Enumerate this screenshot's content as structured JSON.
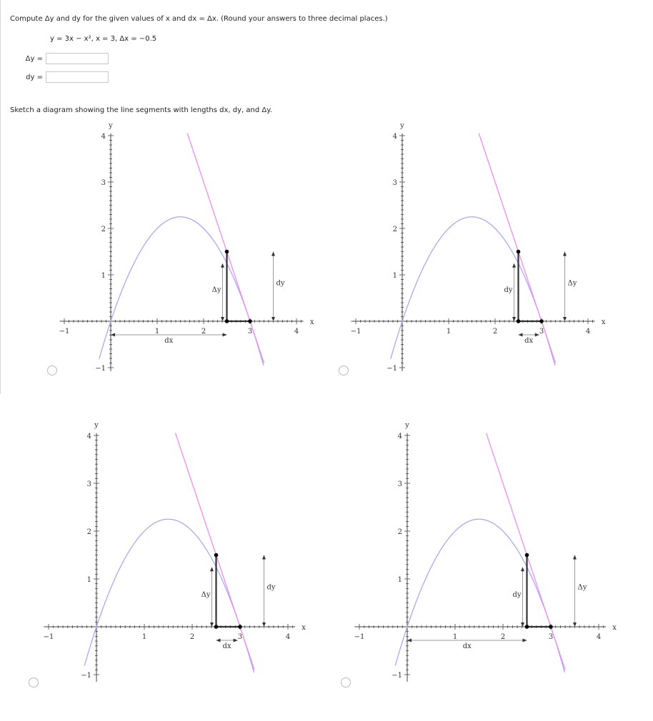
{
  "question": {
    "instructions": "Compute Δy and dy for the given values of x and dx = Δx. (Round your answers to three decimal places.)",
    "equation": "y = 3x − x²,   x = 3,   Δx = −0.5"
  },
  "answers": {
    "delta_y_label": "Δy =",
    "delta_y_value": "",
    "dy_label": "dy =",
    "dy_value": ""
  },
  "sketch_prompt": "Sketch a diagram showing the line segments with lengths dx, dy, and Δy.",
  "options": [
    {
      "name": "option-a",
      "selected": false,
      "short_label": "Δy",
      "tall_label": "dy",
      "dx_style": "long"
    },
    {
      "name": "option-b",
      "selected": false,
      "short_label": "dy",
      "tall_label": "Δy",
      "dx_style": "short"
    },
    {
      "name": "option-c",
      "selected": false,
      "short_label": "Δy",
      "tall_label": "dy",
      "dx_style": "short"
    },
    {
      "name": "option-d",
      "selected": false,
      "short_label": "dy",
      "tall_label": "Δy",
      "dx_style": "long"
    }
  ],
  "graph_labels": {
    "x_axis": "x",
    "y_axis": "y",
    "dx": "dx",
    "x_ticks": [
      "−1",
      "1",
      "2",
      "3",
      "4"
    ],
    "y_ticks": [
      "−1",
      "1",
      "2",
      "3",
      "4"
    ]
  },
  "colors": {
    "curve": "#a9a9f5",
    "tangent": "#f08cf0",
    "segment": "#333333",
    "guide": "#9a9a9a"
  }
}
